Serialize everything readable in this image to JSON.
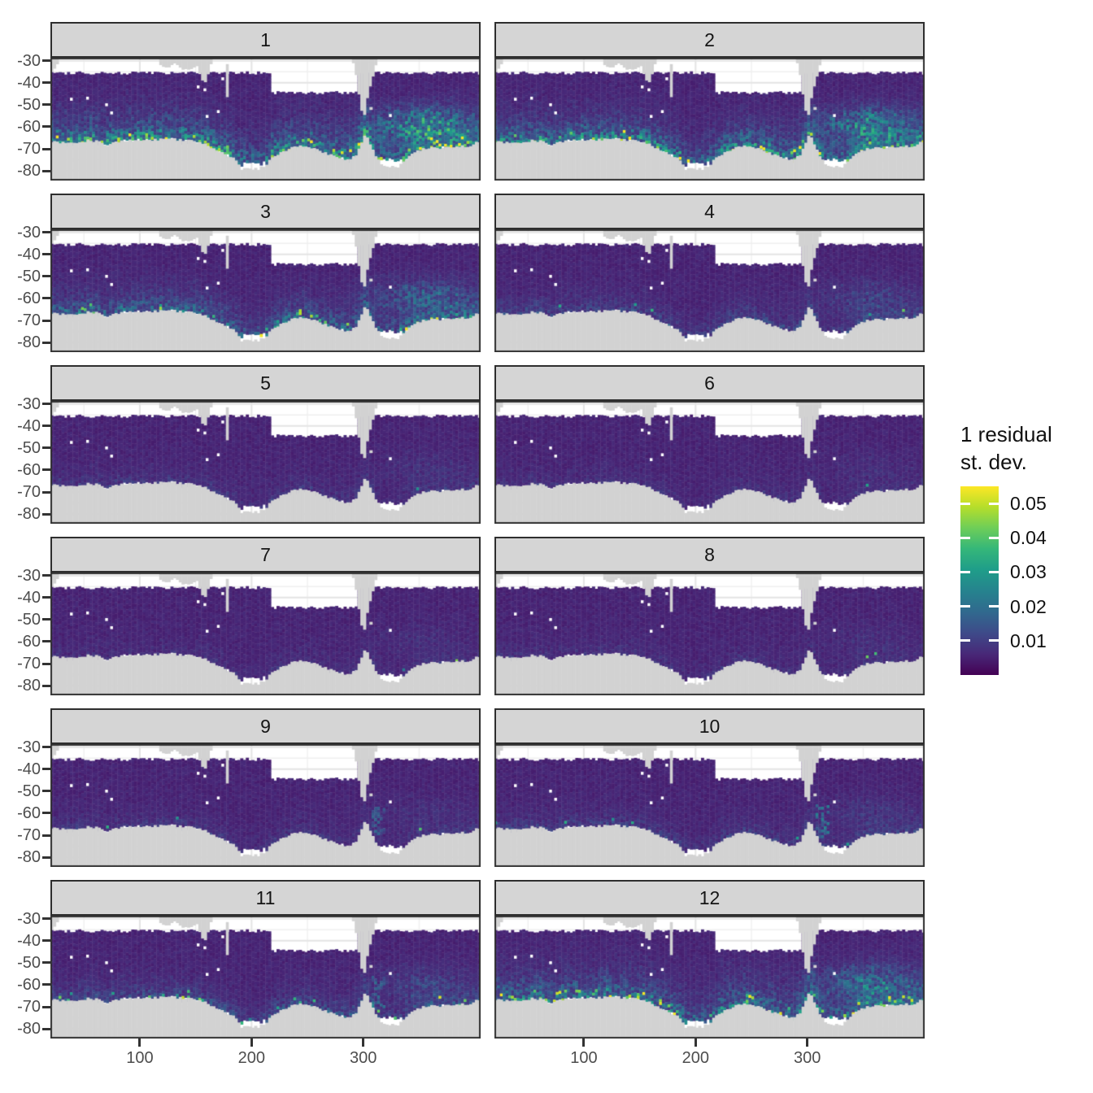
{
  "chart_data": {
    "type": "heatmap",
    "description": "Faceted monthly maps (facets 1-12) of residual standard deviation over the Southern Ocean; viridis fill, gray land, white = no data",
    "facets": {
      "labels": [
        "1",
        "2",
        "3",
        "4",
        "5",
        "6",
        "7",
        "8",
        "9",
        "10",
        "11",
        "12"
      ],
      "rows": 6,
      "cols": 2
    },
    "x_axis": {
      "tick_labels": [
        "100",
        "200",
        "300"
      ],
      "tick_values": [
        100,
        200,
        300
      ],
      "range": [
        20,
        405
      ]
    },
    "y_axis": {
      "tick_labels": [
        "-30",
        "-40",
        "-50",
        "-60",
        "-70",
        "-80"
      ],
      "tick_values": [
        -30,
        -40,
        -50,
        -60,
        -70,
        -80
      ],
      "range": [
        -84.4,
        -28.6
      ]
    },
    "legend": {
      "title_line1": "1 residual",
      "title_line2": "st. dev.",
      "tick_labels": [
        "0.05",
        "0.04",
        "0.03",
        "0.02",
        "0.01"
      ],
      "tick_values": [
        0.05,
        0.04,
        0.03,
        0.02,
        0.01
      ],
      "scale_max": 0.055,
      "palette": "viridis",
      "position": "right"
    },
    "series": [
      {
        "facet": "1",
        "coastal_amp": 0.026,
        "eddy_amp": 0.02,
        "speck_prob": 0.1,
        "reach": 7.0,
        "peninsula": 0,
        "yellow_dot": false
      },
      {
        "facet": "2",
        "coastal_amp": 0.024,
        "eddy_amp": 0.016,
        "speck_prob": 0.09,
        "reach": 6.5,
        "peninsula": 0,
        "yellow_dot": false
      },
      {
        "facet": "3",
        "coastal_amp": 0.017,
        "eddy_amp": 0.01,
        "speck_prob": 0.055,
        "reach": 6.0,
        "peninsula": 0,
        "yellow_dot": false
      },
      {
        "facet": "4",
        "coastal_amp": 0.0075,
        "eddy_amp": 0.005,
        "speck_prob": 0.012,
        "reach": 5.5,
        "peninsula": 0,
        "yellow_dot": false
      },
      {
        "facet": "5",
        "coastal_amp": 0.0045,
        "eddy_amp": 0.0025,
        "speck_prob": 0.005,
        "reach": 5.0,
        "peninsula": 0,
        "yellow_dot": false
      },
      {
        "facet": "6",
        "coastal_amp": 0.0035,
        "eddy_amp": 0.002,
        "speck_prob": 0.003,
        "reach": 5.0,
        "peninsula": 0,
        "yellow_dot": false
      },
      {
        "facet": "7",
        "coastal_amp": 0.003,
        "eddy_amp": 0.0018,
        "speck_prob": 0.002,
        "reach": 5.0,
        "peninsula": 0,
        "yellow_dot": false
      },
      {
        "facet": "8",
        "coastal_amp": 0.0035,
        "eddy_amp": 0.002,
        "speck_prob": 0.004,
        "reach": 5.0,
        "peninsula": 0,
        "yellow_dot": false
      },
      {
        "facet": "9",
        "coastal_amp": 0.004,
        "eddy_amp": 0.002,
        "speck_prob": 0.008,
        "reach": 5.0,
        "peninsula": 0.008,
        "yellow_dot": false
      },
      {
        "facet": "10",
        "coastal_amp": 0.006,
        "eddy_amp": 0.003,
        "speck_prob": 0.014,
        "reach": 5.0,
        "peninsula": 0.012,
        "yellow_dot": false
      },
      {
        "facet": "11",
        "coastal_amp": 0.0095,
        "eddy_amp": 0.005,
        "speck_prob": 0.03,
        "reach": 5.5,
        "peninsula": 0.008,
        "yellow_dot": true
      },
      {
        "facet": "12",
        "coastal_amp": 0.019,
        "eddy_amp": 0.012,
        "speck_prob": 0.11,
        "reach": 7.5,
        "peninsula": 0,
        "yellow_dot": false
      }
    ],
    "colors": {
      "background": "#ffffff",
      "land": "#d2d2d2",
      "strip_bg": "#d5d5d5",
      "strip_text": "#151515",
      "panel_border": "#333333",
      "grid_major": "#e4e4e4",
      "grid_minor": "#f0f0f0",
      "axis_text": "#4d4d4d",
      "tick_mark": "#333333",
      "viridis": [
        "#440154",
        "#482878",
        "#3e4a89",
        "#31688e",
        "#26828e",
        "#1f9e89",
        "#35b779",
        "#6ece58",
        "#b5de2b",
        "#fde725"
      ]
    }
  }
}
